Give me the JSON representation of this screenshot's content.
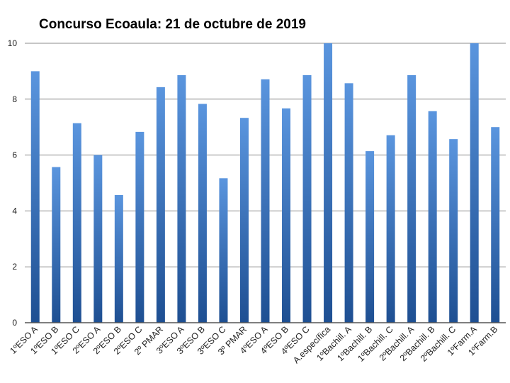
{
  "chart_data": {
    "type": "bar",
    "title": "Concurso Ecoaula: 21 de octubre de 2019",
    "xlabel": "",
    "ylabel": "",
    "ylim": [
      0,
      10
    ],
    "yticks": [
      "0",
      "2",
      "4",
      "6",
      "8",
      "10"
    ],
    "grid": true,
    "legend": "none",
    "categories": [
      "1ºESO A",
      "1ºESO B",
      "1ºESO C",
      "2ºESO A",
      "2ºESO B",
      "2ºESO C",
      "2º PMAR",
      "3ºESO A",
      "3ºESO B",
      "3ºESO C",
      "3º PMAR",
      "4ºESO A",
      "4ºESO B",
      "4ºESO C",
      "A.específica",
      "1ºBachill. A",
      "1ºBachill. B",
      "1ºBachill. C",
      "2ºBachill. A",
      "2ºBachill. B",
      "2ºBachill. C",
      "1ºFarm.A",
      "1ºFarm.B"
    ],
    "values": [
      9.0,
      5.57,
      7.14,
      6.0,
      4.57,
      6.83,
      8.43,
      8.86,
      7.83,
      5.17,
      7.33,
      8.71,
      7.67,
      8.86,
      10.0,
      8.57,
      6.14,
      6.71,
      8.86,
      7.57,
      6.57,
      10.0,
      7.0
    ],
    "colors": {
      "bar_top": "#5a95de",
      "bar_bottom": "#1e4f92",
      "grid": "#8c8c8c",
      "axis": "#555555"
    }
  }
}
